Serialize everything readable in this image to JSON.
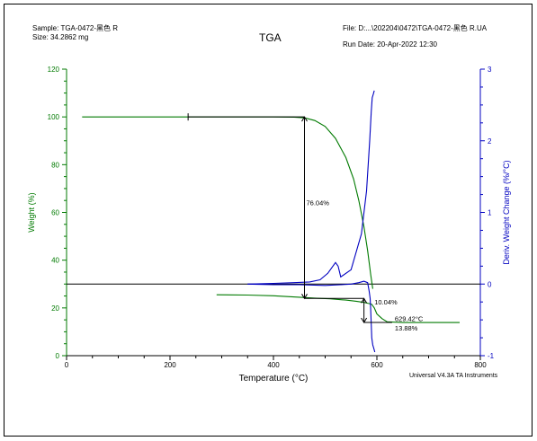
{
  "header": {
    "sample_label": "Sample:",
    "sample_value": "TGA-0472-黑色 R",
    "size_label": "Size:",
    "size_value": "34.2862 mg",
    "title": "TGA",
    "file_label": "File:",
    "file_value": "D:...\\202204\\0472\\TGA-0472-黑色 R.UA",
    "rundate_label": "Run Date:",
    "rundate_value": "20-Apr-2022 12:30"
  },
  "footer": {
    "instrument": "Universal V4.3A TA Instruments"
  },
  "colors": {
    "weight": "#007a00",
    "deriv": "#0000c0",
    "annot": "#000000"
  },
  "chart_data": {
    "type": "line",
    "title": "TGA",
    "xlabel": "Temperature (°C)",
    "ylabel": "Weight (%)",
    "y2label": "Deriv. Weight Change (%/°C)",
    "xlim": [
      0,
      800
    ],
    "ylim": [
      0,
      120
    ],
    "y2lim": [
      -1,
      3
    ],
    "xticks": [
      0,
      200,
      400,
      600,
      800
    ],
    "yticks": [
      0,
      20,
      40,
      60,
      80,
      100,
      120
    ],
    "y2ticks": [
      -1,
      0,
      1,
      2,
      3
    ],
    "grid": false,
    "series": [
      {
        "axis": "left",
        "x": [
          30,
          100,
          200,
          300,
          400,
          440,
          460,
          480,
          500,
          520,
          540,
          555,
          565,
          575,
          582,
          588,
          592
        ],
        "y": [
          100,
          100,
          100,
          100,
          100,
          99.9,
          99.6,
          98.5,
          96,
          91,
          83,
          74,
          65,
          54,
          44,
          34,
          28
        ]
      },
      {
        "axis": "left",
        "x": [
          290,
          350,
          400,
          450,
          480,
          510,
          540,
          560,
          575,
          585,
          590,
          595,
          600,
          610,
          620,
          650,
          700,
          760
        ],
        "y": [
          25.5,
          25.4,
          25.1,
          24.5,
          24.1,
          23.8,
          23.3,
          22.8,
          22.3,
          21.8,
          21.5,
          20,
          17.5,
          15.5,
          14.2,
          13.88,
          13.88,
          13.88
        ]
      },
      {
        "axis": "right",
        "x": [
          350,
          400,
          440,
          470,
          490,
          505,
          515,
          520,
          525,
          530,
          550,
          570,
          580,
          586,
          589,
          591,
          593,
          595
        ],
        "y": [
          0,
          0.01,
          0.02,
          0.03,
          0.06,
          0.15,
          0.25,
          0.3,
          0.25,
          0.1,
          0.2,
          0.7,
          1.3,
          2,
          2.4,
          2.6,
          2.65,
          2.7
        ]
      },
      {
        "axis": "right",
        "x": [
          350,
          400,
          450,
          500,
          530,
          550,
          565,
          575,
          582,
          585,
          587,
          588,
          589,
          590,
          592,
          594,
          596
        ],
        "y": [
          0,
          -0.01,
          -0.01,
          -0.02,
          -0.01,
          0,
          0.02,
          0.04,
          0.02,
          -0.1,
          -0.2,
          -0.35,
          -0.55,
          -0.75,
          -0.85,
          -0.9,
          -0.95
        ]
      }
    ],
    "annotations": [
      {
        "text": "76.04%",
        "x": 460,
        "y": 63
      },
      {
        "text": "10.04%",
        "x": 590,
        "y": 21.5
      },
      {
        "text": "629.42°C",
        "x": 629.42,
        "y": 14.5
      },
      {
        "text": "13.88%",
        "x": 629.42,
        "y": 10.5
      }
    ],
    "step1": {
      "x_start": 235,
      "x_end": 460,
      "y_top": 100,
      "y_bottom": 23.96
    },
    "step2": {
      "x_start": 460,
      "x_end": 575,
      "y_top": 23.96,
      "y_bottom": 13.92
    }
  }
}
